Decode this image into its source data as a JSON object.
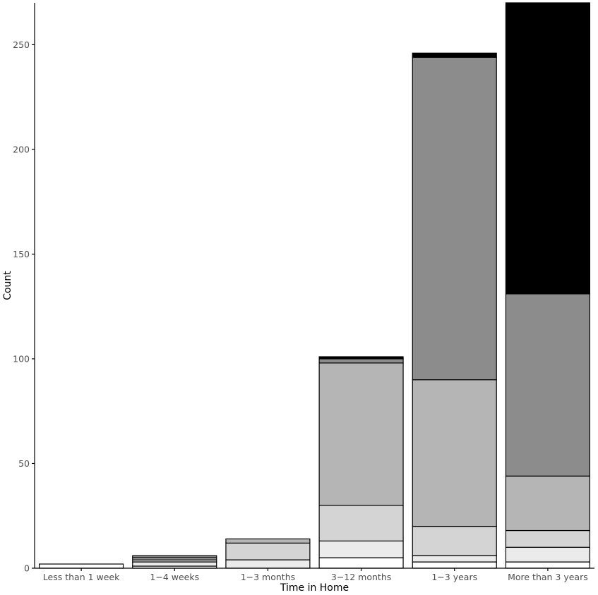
{
  "chart_data": {
    "type": "bar",
    "stacked": true,
    "xlabel": "Time in Home",
    "ylabel": "Count",
    "ylim": [
      0,
      270
    ],
    "yticks": [
      0,
      50,
      100,
      150,
      200,
      250
    ],
    "grid": false,
    "categories": [
      "Less than 1 week",
      "1−4 weeks",
      "1−3 months",
      "3−12 months",
      "1−3 years",
      "More than 3 years"
    ],
    "series": [
      {
        "color": "#ffffff",
        "values": [
          2,
          1,
          0,
          5,
          3,
          3
        ]
      },
      {
        "color": "#ebebeb",
        "values": [
          0,
          2,
          4,
          8,
          3,
          7
        ]
      },
      {
        "color": "#d4d4d4",
        "values": [
          0,
          1,
          8,
          17,
          14,
          8
        ]
      },
      {
        "color": "#b5b5b5",
        "values": [
          0,
          1,
          2,
          68,
          70,
          26
        ]
      },
      {
        "color": "#8c8c8c",
        "values": [
          0,
          1,
          0,
          2,
          154,
          87
        ]
      },
      {
        "color": "#000000",
        "values": [
          0,
          0,
          0,
          1,
          2,
          139
        ]
      }
    ]
  }
}
